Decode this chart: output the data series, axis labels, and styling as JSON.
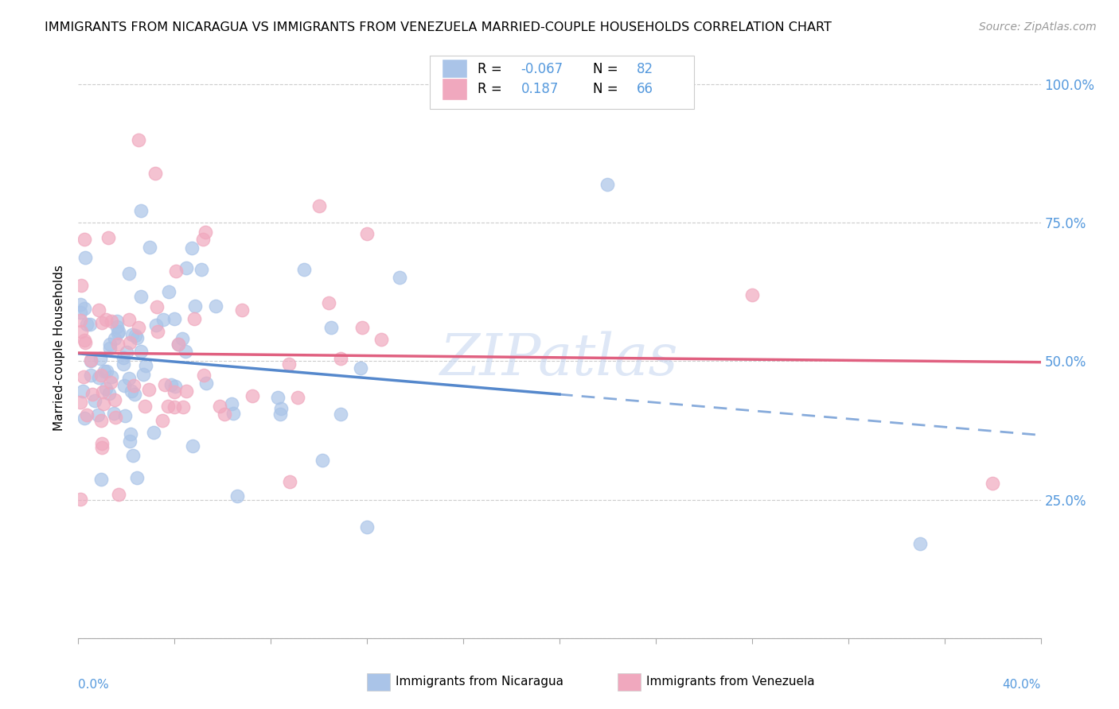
{
  "title": "IMMIGRANTS FROM NICARAGUA VS IMMIGRANTS FROM VENEZUELA MARRIED-COUPLE HOUSEHOLDS CORRELATION CHART",
  "source": "Source: ZipAtlas.com",
  "ylabel": "Married-couple Households",
  "xlim": [
    0.0,
    0.4
  ],
  "ylim": [
    0.0,
    1.05
  ],
  "legend_R1": "-0.067",
  "legend_N1": "82",
  "legend_R2": "0.187",
  "legend_N2": "66",
  "color_nicaragua": "#aac4e8",
  "color_venezuela": "#f0a8be",
  "color_nicaragua_line": "#5588cc",
  "color_venezuela_line": "#e06080",
  "color_ytick": "#5599dd",
  "watermark": "ZIPatlas",
  "ytick_vals": [
    0.0,
    0.25,
    0.5,
    0.75,
    1.0
  ],
  "ytick_labels": [
    "",
    "25.0%",
    "50.0%",
    "75.0%",
    "100.0%"
  ]
}
